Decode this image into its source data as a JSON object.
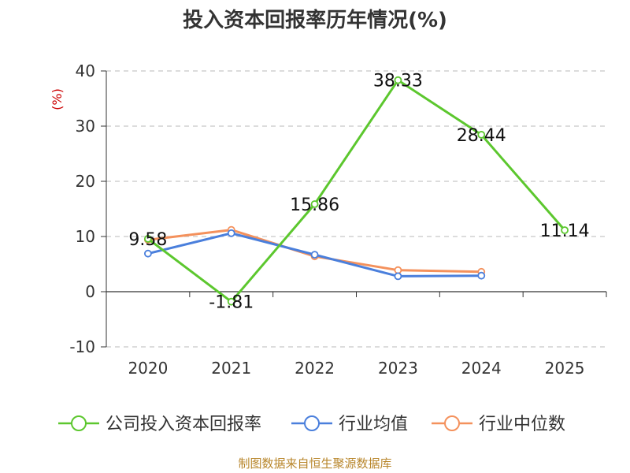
{
  "chart_data": {
    "type": "line",
    "title": "投入资本回报率历年情况(%)",
    "ylabel": "(%)",
    "ylim": [
      -10,
      40
    ],
    "yticks": [
      -10,
      0,
      10,
      20,
      30,
      40
    ],
    "categories": [
      "2020",
      "2021",
      "2022",
      "2023",
      "2024",
      "2025"
    ],
    "grid": true,
    "legend_position": "bottom",
    "series": [
      {
        "name": "公司投入资本回报率",
        "color": "#5cc72e",
        "values": [
          9.58,
          -1.81,
          15.86,
          38.33,
          28.44,
          11.14
        ],
        "labels": [
          "9.58",
          "-1.81",
          "15.86",
          "38.33",
          "28.44",
          "11.14"
        ]
      },
      {
        "name": "行业均值",
        "color": "#4a7fdc",
        "values": [
          6.9,
          10.6,
          6.7,
          2.8,
          2.9,
          null
        ]
      },
      {
        "name": "行业中位数",
        "color": "#f4915c",
        "values": [
          9.4,
          11.2,
          6.4,
          3.9,
          3.6,
          null
        ]
      }
    ]
  },
  "source": "制图数据来自恒生聚源数据库"
}
